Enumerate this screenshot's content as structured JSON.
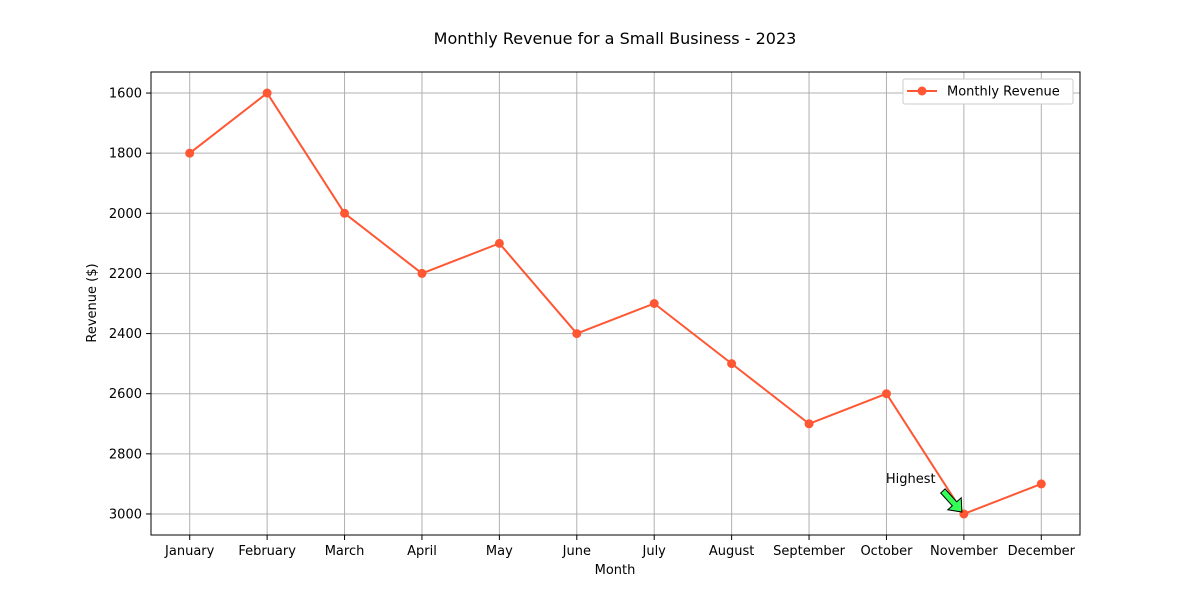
{
  "chart_data": {
    "type": "line",
    "title": "Monthly Revenue for a Small Business - 2023",
    "xlabel": "Month",
    "ylabel": "Revenue ($)",
    "categories": [
      "January",
      "February",
      "March",
      "April",
      "May",
      "June",
      "July",
      "August",
      "September",
      "October",
      "November",
      "December"
    ],
    "series": [
      {
        "name": "Monthly Revenue",
        "values": [
          1800,
          1600,
          2000,
          2200,
          2100,
          2400,
          2300,
          2500,
          2700,
          2600,
          3000,
          2900
        ],
        "color": "#ff5733"
      }
    ],
    "ylim": [
      1530,
      3070
    ],
    "y_inverted": true,
    "yticks": [
      1600,
      1800,
      2000,
      2200,
      2400,
      2600,
      2800,
      3000
    ],
    "grid": true,
    "legend_position": "top-right",
    "annotation": {
      "text": "Highest",
      "target_category": "November",
      "target_value": 3000,
      "arrow_color": "#33ff57"
    }
  }
}
